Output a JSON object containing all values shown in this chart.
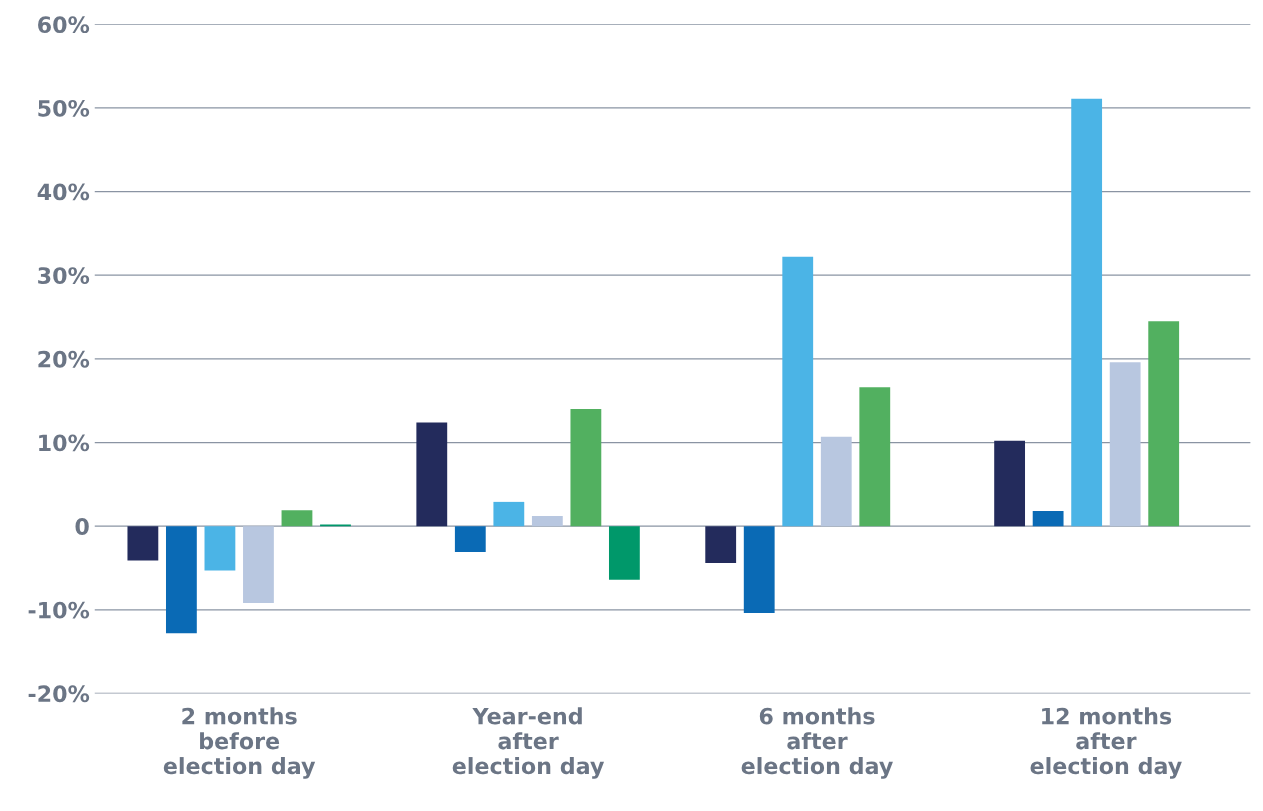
{
  "chart_data": {
    "type": "bar",
    "categories": [
      "2 months\nbefore\nelection day",
      "Year-end\nafter\nelection day",
      "6 months\nafter\nelection day",
      "12 months\nafter\nelection day"
    ],
    "series": [
      {
        "color": "#232b5c",
        "values": [
          -4.1,
          12.4,
          -4.4,
          10.2
        ]
      },
      {
        "color": "#0a6ab5",
        "values": [
          -12.8,
          -3.1,
          -10.4,
          1.8
        ]
      },
      {
        "color": "#4bb4e6",
        "values": [
          -5.3,
          2.9,
          32.2,
          51.1
        ]
      },
      {
        "color": "#b8c7e0",
        "values": [
          -9.2,
          1.2,
          10.7,
          19.6
        ]
      },
      {
        "color": "#52b060",
        "values": [
          1.9,
          14.0,
          16.6,
          24.5
        ]
      },
      {
        "color": "#00986a",
        "values": [
          0.2,
          -6.4,
          null,
          null
        ]
      }
    ],
    "ylim": [
      -20,
      60
    ],
    "yticks": [
      {
        "value": -20,
        "label": "-20%"
      },
      {
        "value": -10,
        "label": "-10%"
      },
      0,
      {
        "value": 10,
        "label": "10%"
      },
      {
        "value": 20,
        "label": "20%"
      },
      {
        "value": 30,
        "label": "30%"
      },
      {
        "value": 40,
        "label": "40%"
      },
      {
        "value": 50,
        "label": "50%"
      },
      {
        "value": 60,
        "label": "60%"
      }
    ],
    "grid": "y",
    "legend": false
  }
}
